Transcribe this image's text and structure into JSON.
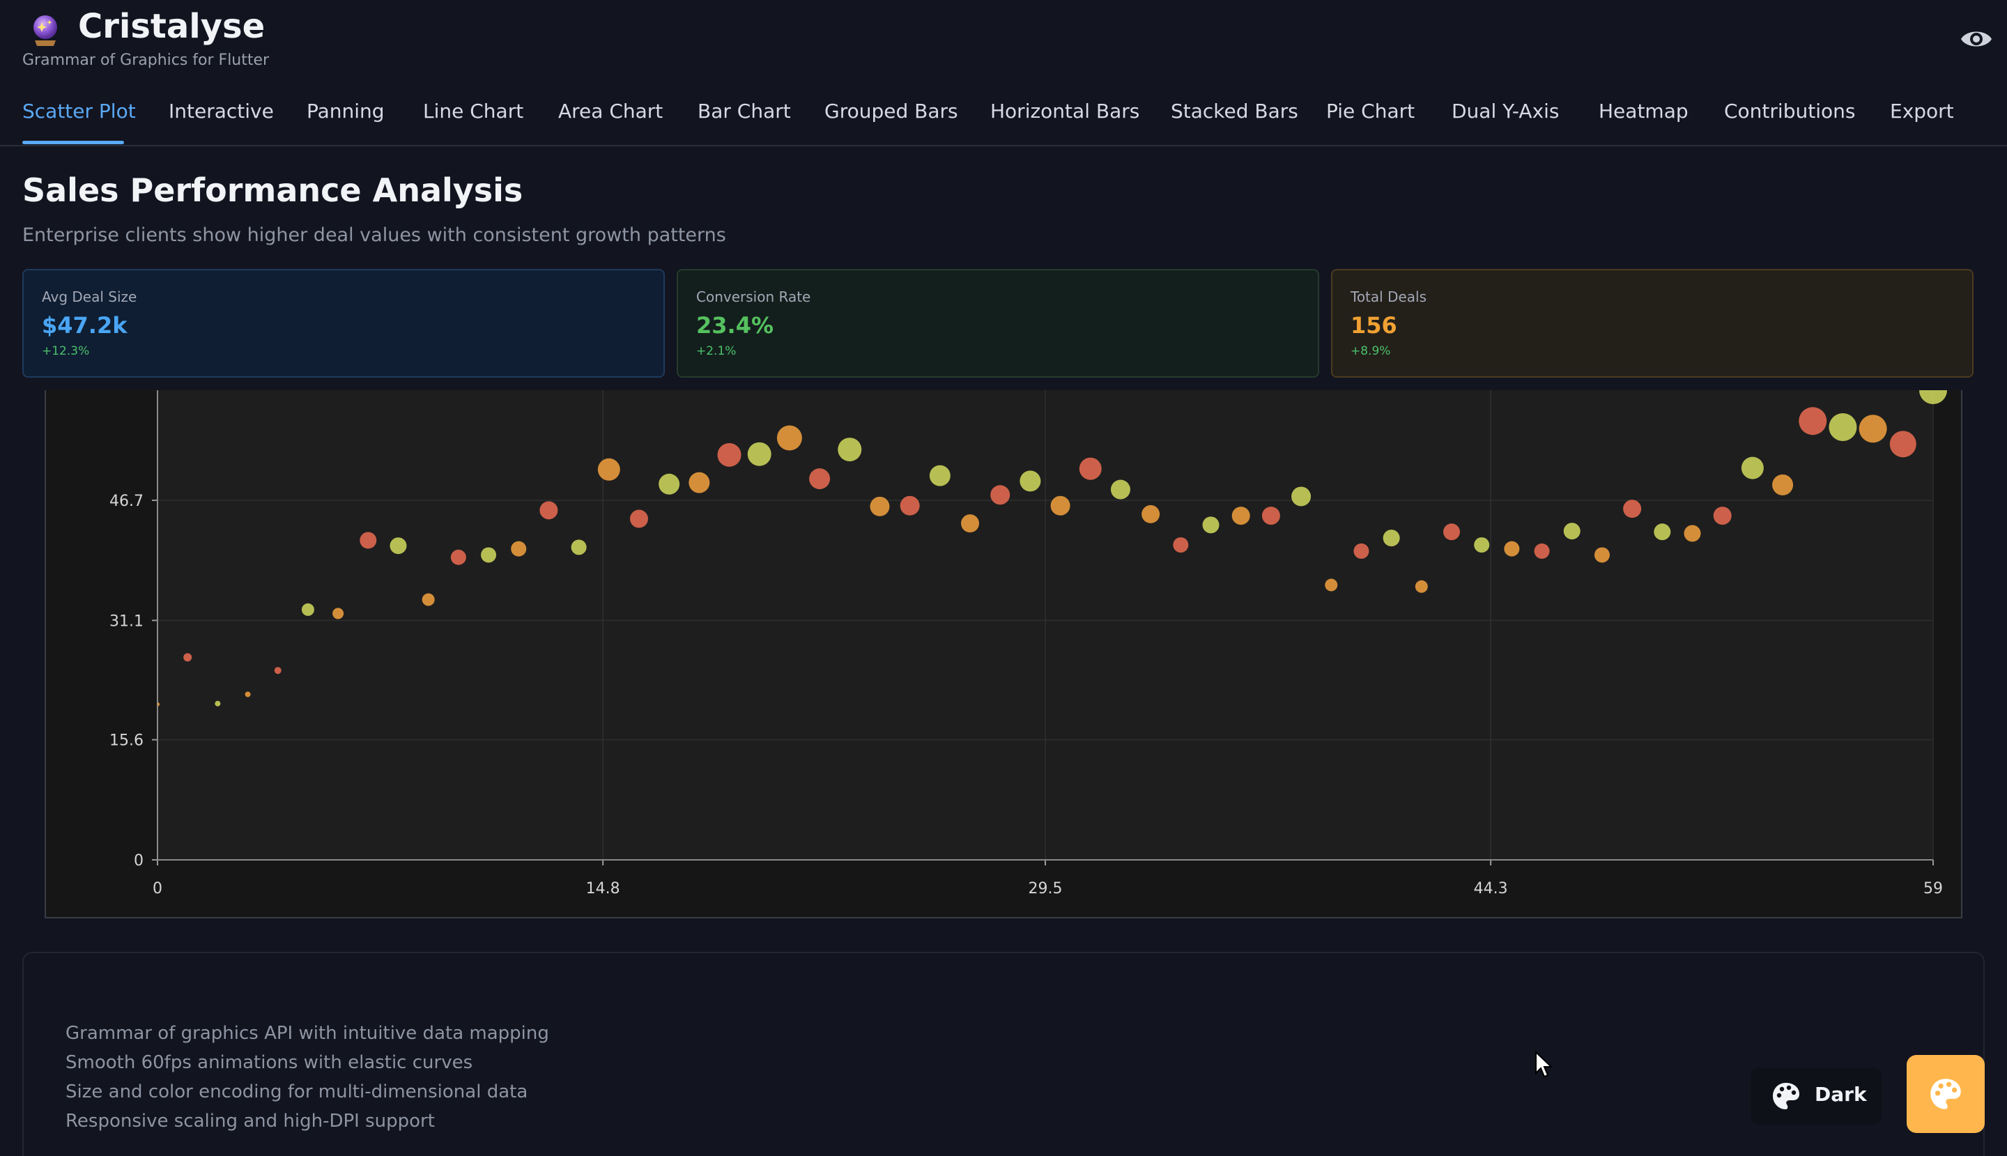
{
  "app": {
    "title": "Cristalyse",
    "subtitle": "Grammar of Graphics for Flutter",
    "logo_icon": "crystal-ball-icon",
    "visibility_icon": "eye-icon"
  },
  "tabs": [
    {
      "label": "Scatter Plot",
      "active": true
    },
    {
      "label": "Interactive"
    },
    {
      "label": "Panning"
    },
    {
      "label": "Line Chart"
    },
    {
      "label": "Area Chart"
    },
    {
      "label": "Bar Chart"
    },
    {
      "label": "Grouped Bars"
    },
    {
      "label": "Horizontal Bars"
    },
    {
      "label": "Stacked Bars"
    },
    {
      "label": "Pie Chart"
    },
    {
      "label": "Dual Y-Axis"
    },
    {
      "label": "Heatmap"
    },
    {
      "label": "Contributions"
    },
    {
      "label": "Export"
    }
  ],
  "page": {
    "title": "Sales Performance Analysis",
    "subtitle": "Enterprise clients show higher deal values with consistent growth patterns"
  },
  "stats": [
    {
      "label": "Avg Deal Size",
      "value": "$47.2k",
      "delta": "+12.3%",
      "color": "#4aa6f5"
    },
    {
      "label": "Conversion Rate",
      "value": "23.4%",
      "delta": "+2.1%",
      "color": "#56c15f"
    },
    {
      "label": "Total Deals",
      "value": "156",
      "delta": "+8.9%",
      "color": "#f0a133"
    }
  ],
  "chart_data": {
    "type": "scatter",
    "x_ticks": [
      "0",
      "14.8",
      "29.5",
      "44.3",
      "59"
    ],
    "y_ticks": [
      "0",
      "15.6",
      "31.1",
      "46.7"
    ],
    "xlim": [
      0,
      59
    ],
    "ylim": [
      0,
      61
    ],
    "grid": true,
    "colors": [
      "#e0674f",
      "#e89a3c",
      "#c8d05a"
    ],
    "points": [
      {
        "x": 0,
        "y": 20.2,
        "size": 3,
        "color": 1
      },
      {
        "x": 1,
        "y": 26.3,
        "size": 6,
        "color": 0
      },
      {
        "x": 2,
        "y": 20.3,
        "size": 4,
        "color": 2
      },
      {
        "x": 3,
        "y": 21.5,
        "size": 4,
        "color": 1
      },
      {
        "x": 4,
        "y": 24.6,
        "size": 5,
        "color": 0
      },
      {
        "x": 5,
        "y": 32.5,
        "size": 9,
        "color": 2
      },
      {
        "x": 6,
        "y": 32.0,
        "size": 8,
        "color": 1
      },
      {
        "x": 7,
        "y": 41.5,
        "size": 12,
        "color": 0
      },
      {
        "x": 8,
        "y": 40.8,
        "size": 12,
        "color": 2
      },
      {
        "x": 9,
        "y": 33.8,
        "size": 9,
        "color": 1
      },
      {
        "x": 10,
        "y": 39.3,
        "size": 11,
        "color": 0
      },
      {
        "x": 11,
        "y": 39.6,
        "size": 11,
        "color": 2
      },
      {
        "x": 12,
        "y": 40.4,
        "size": 11,
        "color": 1
      },
      {
        "x": 13,
        "y": 45.4,
        "size": 13,
        "color": 0
      },
      {
        "x": 14,
        "y": 40.6,
        "size": 11,
        "color": 2
      },
      {
        "x": 15,
        "y": 50.7,
        "size": 16,
        "color": 1
      },
      {
        "x": 16,
        "y": 44.3,
        "size": 13,
        "color": 0
      },
      {
        "x": 17,
        "y": 48.8,
        "size": 15,
        "color": 2
      },
      {
        "x": 18,
        "y": 49.0,
        "size": 15,
        "color": 1
      },
      {
        "x": 19,
        "y": 52.6,
        "size": 17,
        "color": 0
      },
      {
        "x": 20,
        "y": 52.7,
        "size": 17,
        "color": 2
      },
      {
        "x": 21,
        "y": 54.8,
        "size": 18,
        "color": 1
      },
      {
        "x": 22,
        "y": 49.5,
        "size": 15,
        "color": 0
      },
      {
        "x": 23,
        "y": 53.3,
        "size": 17,
        "color": 2
      },
      {
        "x": 24,
        "y": 45.9,
        "size": 14,
        "color": 1
      },
      {
        "x": 25,
        "y": 46.0,
        "size": 14,
        "color": 0
      },
      {
        "x": 26,
        "y": 49.9,
        "size": 15,
        "color": 2
      },
      {
        "x": 27,
        "y": 43.7,
        "size": 13,
        "color": 1
      },
      {
        "x": 28,
        "y": 47.4,
        "size": 14,
        "color": 0
      },
      {
        "x": 29,
        "y": 49.2,
        "size": 15,
        "color": 2
      },
      {
        "x": 30,
        "y": 46.0,
        "size": 14,
        "color": 1
      },
      {
        "x": 31,
        "y": 50.8,
        "size": 16,
        "color": 0
      },
      {
        "x": 32,
        "y": 48.1,
        "size": 14,
        "color": 2
      },
      {
        "x": 33,
        "y": 44.9,
        "size": 13,
        "color": 1
      },
      {
        "x": 34,
        "y": 40.9,
        "size": 11,
        "color": 0
      },
      {
        "x": 35,
        "y": 43.5,
        "size": 12,
        "color": 2
      },
      {
        "x": 36,
        "y": 44.7,
        "size": 13,
        "color": 1
      },
      {
        "x": 37,
        "y": 44.7,
        "size": 13,
        "color": 0
      },
      {
        "x": 38,
        "y": 47.2,
        "size": 14,
        "color": 2
      },
      {
        "x": 39,
        "y": 35.7,
        "size": 9,
        "color": 1
      },
      {
        "x": 40,
        "y": 40.1,
        "size": 11,
        "color": 0
      },
      {
        "x": 41,
        "y": 41.8,
        "size": 12,
        "color": 2
      },
      {
        "x": 42,
        "y": 35.5,
        "size": 9,
        "color": 1
      },
      {
        "x": 43,
        "y": 42.6,
        "size": 12,
        "color": 0
      },
      {
        "x": 44,
        "y": 40.9,
        "size": 11,
        "color": 2
      },
      {
        "x": 45,
        "y": 40.4,
        "size": 11,
        "color": 1
      },
      {
        "x": 46,
        "y": 40.1,
        "size": 11,
        "color": 0
      },
      {
        "x": 47,
        "y": 42.7,
        "size": 12,
        "color": 2
      },
      {
        "x": 48,
        "y": 39.6,
        "size": 11,
        "color": 1
      },
      {
        "x": 49,
        "y": 45.6,
        "size": 13,
        "color": 0
      },
      {
        "x": 50,
        "y": 42.6,
        "size": 12,
        "color": 2
      },
      {
        "x": 51,
        "y": 42.4,
        "size": 12,
        "color": 1
      },
      {
        "x": 52,
        "y": 44.7,
        "size": 13,
        "color": 0
      },
      {
        "x": 53,
        "y": 50.9,
        "size": 16,
        "color": 2
      },
      {
        "x": 54,
        "y": 48.7,
        "size": 15,
        "color": 1
      },
      {
        "x": 55,
        "y": 57.0,
        "size": 20,
        "color": 0
      },
      {
        "x": 56,
        "y": 56.2,
        "size": 20,
        "color": 2
      },
      {
        "x": 57,
        "y": 56.0,
        "size": 20,
        "color": 1
      },
      {
        "x": 58,
        "y": 54.0,
        "size": 19,
        "color": 0
      },
      {
        "x": 59,
        "y": 61.0,
        "size": 20,
        "color": 2
      }
    ]
  },
  "features": [
    "Grammar of graphics API with intuitive data mapping",
    "Smooth 60fps animations with elastic curves",
    "Size and color encoding for multi-dimensional data",
    "Responsive scaling and high-DPI support"
  ],
  "controls": {
    "theme_label": "Dark",
    "theme_icon": "palette-icon",
    "fab_icon": "palette-icon"
  }
}
